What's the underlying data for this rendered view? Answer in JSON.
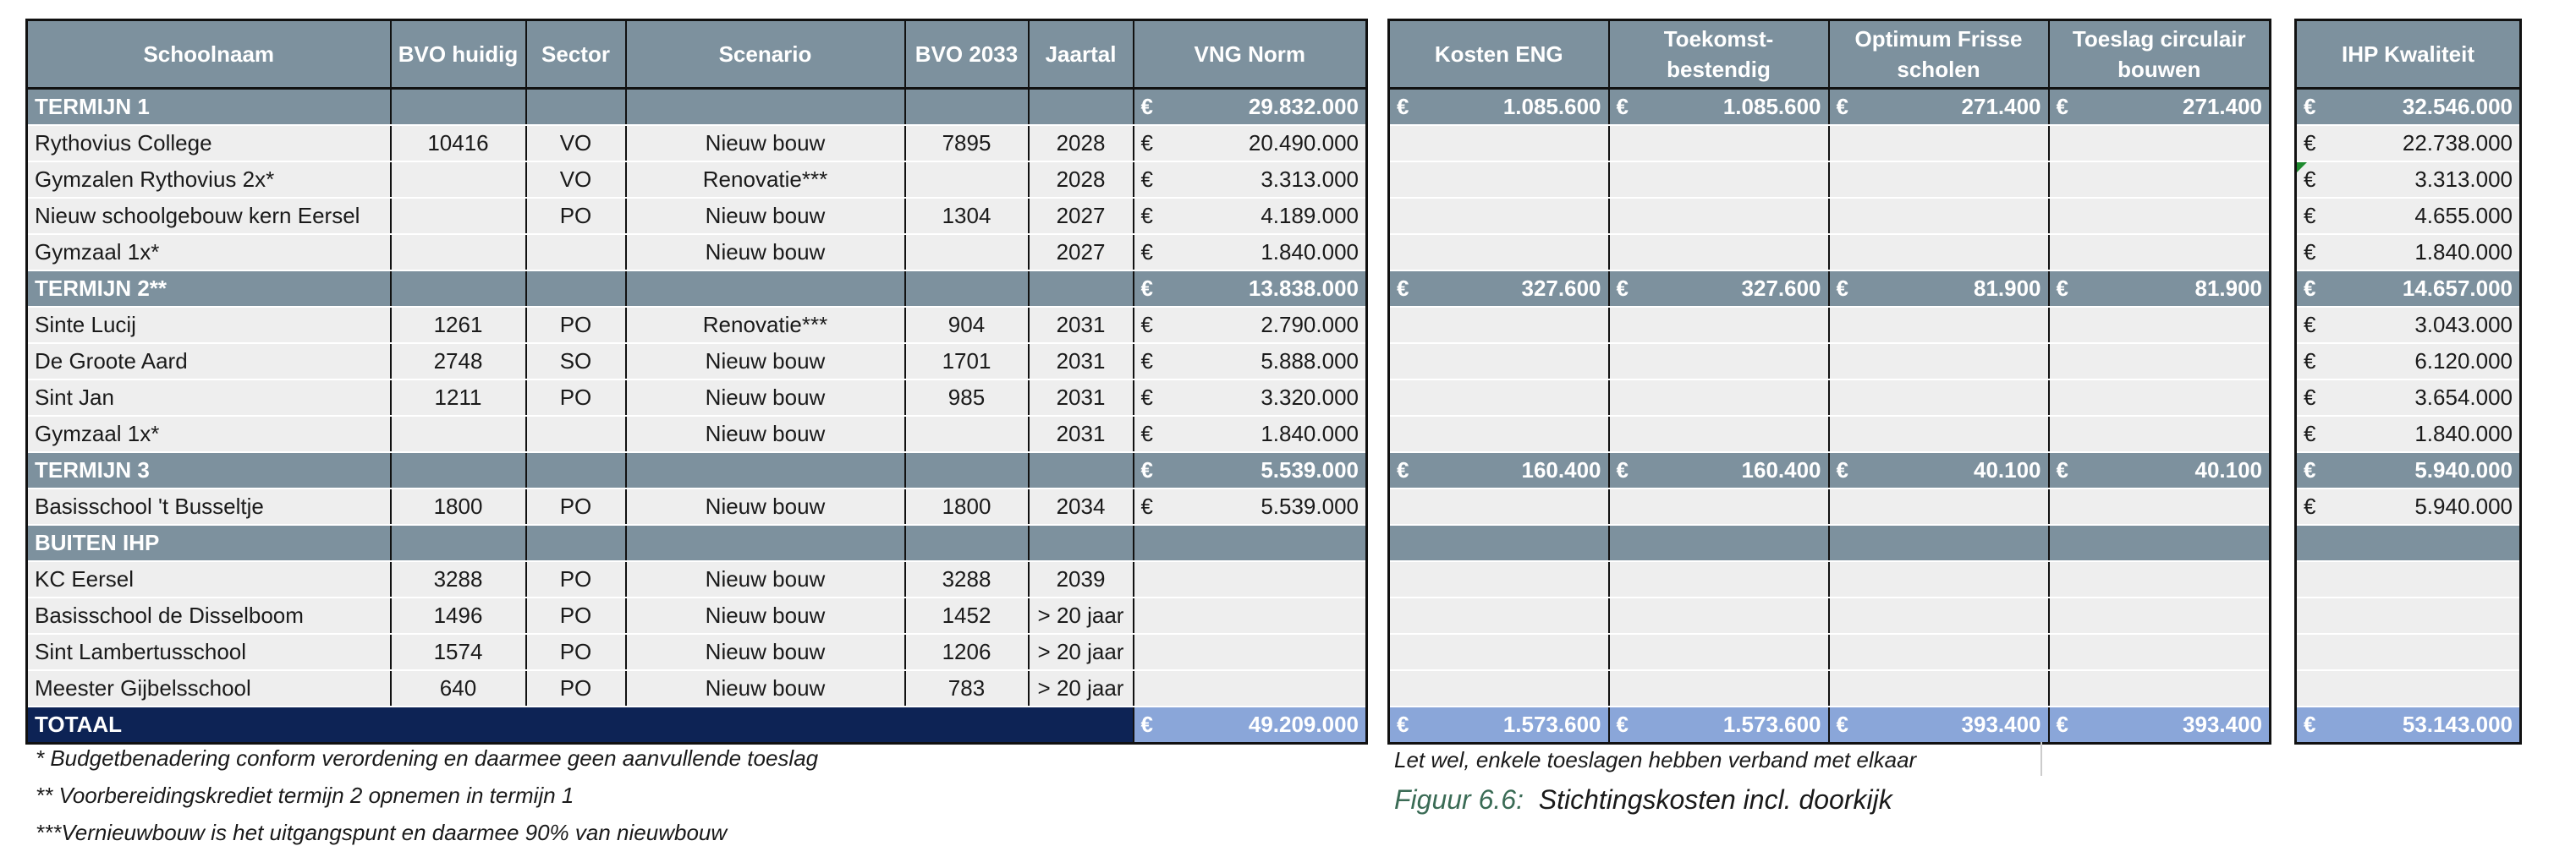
{
  "euro_sign": "€",
  "headers": {
    "schoolnaam": "Schoolnaam",
    "bvo_huidig": "BVO huidig",
    "sector": "Sector",
    "scenario": "Scenario",
    "bvo_2033": "BVO 2033",
    "jaartal": "Jaartal",
    "vng_norm": "VNG Norm",
    "kosten_eng": "Kosten ENG",
    "toekomstbestendig": "Toekomst-bestendig",
    "optimum": "Optimum Frisse scholen",
    "toeslag_circulair": "Toeslag circulair bouwen",
    "ihp_kwaliteit": "IHP Kwaliteit"
  },
  "sections": [
    {
      "title": "TERMIJN 1",
      "vng": "29.832.000",
      "eng": "1.085.600",
      "toek": "1.085.600",
      "opt": "271.400",
      "circ": "271.400",
      "ihp": "32.546.000",
      "rows": [
        {
          "name": "Rythovius College",
          "bvo": "10416",
          "sector": "VO",
          "scenario": "Nieuw bouw",
          "bvo2033": "7895",
          "jaar": "2028",
          "vng": "20.490.000",
          "ihp": "22.738.000"
        },
        {
          "name": "Gymzalen Rythovius 2x*",
          "bvo": "",
          "sector": "VO",
          "scenario": "Renovatie***",
          "bvo2033": "",
          "jaar": "2028",
          "vng": "3.313.000",
          "ihp": "3.313.000"
        },
        {
          "name": "Nieuw schoolgebouw kern Eersel",
          "bvo": "",
          "sector": "PO",
          "scenario": "Nieuw bouw",
          "bvo2033": "1304",
          "jaar": "2027",
          "vng": "4.189.000",
          "ihp": "4.655.000"
        },
        {
          "name": "Gymzaal 1x*",
          "bvo": "",
          "sector": "",
          "scenario": "Nieuw bouw",
          "bvo2033": "",
          "jaar": "2027",
          "vng": "1.840.000",
          "ihp": "1.840.000"
        }
      ]
    },
    {
      "title": "TERMIJN 2**",
      "vng": "13.838.000",
      "eng": "327.600",
      "toek": "327.600",
      "opt": "81.900",
      "circ": "81.900",
      "ihp": "14.657.000",
      "rows": [
        {
          "name": "Sinte Lucij",
          "bvo": "1261",
          "sector": "PO",
          "scenario": "Renovatie***",
          "bvo2033": "904",
          "jaar": "2031",
          "vng": "2.790.000",
          "ihp": "3.043.000"
        },
        {
          "name": "De Groote Aard",
          "bvo": "2748",
          "sector": "SO",
          "scenario": "Nieuw bouw",
          "bvo2033": "1701",
          "jaar": "2031",
          "vng": "5.888.000",
          "ihp": "6.120.000"
        },
        {
          "name": "Sint Jan",
          "bvo": "1211",
          "sector": "PO",
          "scenario": "Nieuw bouw",
          "bvo2033": "985",
          "jaar": "2031",
          "vng": "3.320.000",
          "ihp": "3.654.000"
        },
        {
          "name": "Gymzaal 1x*",
          "bvo": "",
          "sector": "",
          "scenario": "Nieuw bouw",
          "bvo2033": "",
          "jaar": "2031",
          "vng": "1.840.000",
          "ihp": "1.840.000"
        }
      ]
    },
    {
      "title": "TERMIJN 3",
      "vng": "5.539.000",
      "eng": "160.400",
      "toek": "160.400",
      "opt": "40.100",
      "circ": "40.100",
      "ihp": "5.940.000",
      "rows": [
        {
          "name": "Basisschool 't Busseltje",
          "bvo": "1800",
          "sector": "PO",
          "scenario": "Nieuw bouw",
          "bvo2033": "1800",
          "jaar": "2034",
          "vng": "5.539.000",
          "ihp": "5.940.000"
        }
      ]
    },
    {
      "title": "BUITEN IHP",
      "vng": "",
      "eng": "",
      "toek": "",
      "opt": "",
      "circ": "",
      "ihp": "",
      "rows": [
        {
          "name": "KC Eersel",
          "bvo": "3288",
          "sector": "PO",
          "scenario": "Nieuw bouw",
          "bvo2033": "3288",
          "jaar": "2039",
          "vng": "",
          "ihp": ""
        },
        {
          "name": "Basisschool de Disselboom",
          "bvo": "1496",
          "sector": "PO",
          "scenario": "Nieuw bouw",
          "bvo2033": "1452",
          "jaar": "> 20 jaar",
          "vng": "",
          "ihp": ""
        },
        {
          "name": "Sint Lambertusschool",
          "bvo": "1574",
          "sector": "PO",
          "scenario": "Nieuw bouw",
          "bvo2033": "1206",
          "jaar": "> 20 jaar",
          "vng": "",
          "ihp": ""
        },
        {
          "name": "Meester Gijbelsschool",
          "bvo": "640",
          "sector": "PO",
          "scenario": "Nieuw bouw",
          "bvo2033": "783",
          "jaar": "> 20 jaar",
          "vng": "",
          "ihp": ""
        }
      ]
    }
  ],
  "totals": {
    "label": "TOTAAL",
    "vng": "49.209.000",
    "eng": "1.573.600",
    "toek": "1.573.600",
    "opt": "393.400",
    "circ": "393.400",
    "ihp": "53.143.000"
  },
  "notes": [
    "* Budgetbenadering conform verordening en daarmee geen aanvullende toeslag",
    "** Voorbereidingskrediet termijn 2 opnemen in termijn 1",
    "***Vernieuwbouw is het uitgangspunt en daarmee 90% van nieuwbouw"
  ],
  "note_right": "Let wel, enkele toeslagen hebben verband met elkaar",
  "caption": {
    "label": "Figuur 6.6:",
    "text": "Stichtingskosten incl. doorkijk"
  },
  "colors": {
    "header": "#7d919e",
    "row": "#eeeeee",
    "total": "#0d2355",
    "total_value": "#8aa6d9",
    "caption_label": "#3a6b55"
  }
}
